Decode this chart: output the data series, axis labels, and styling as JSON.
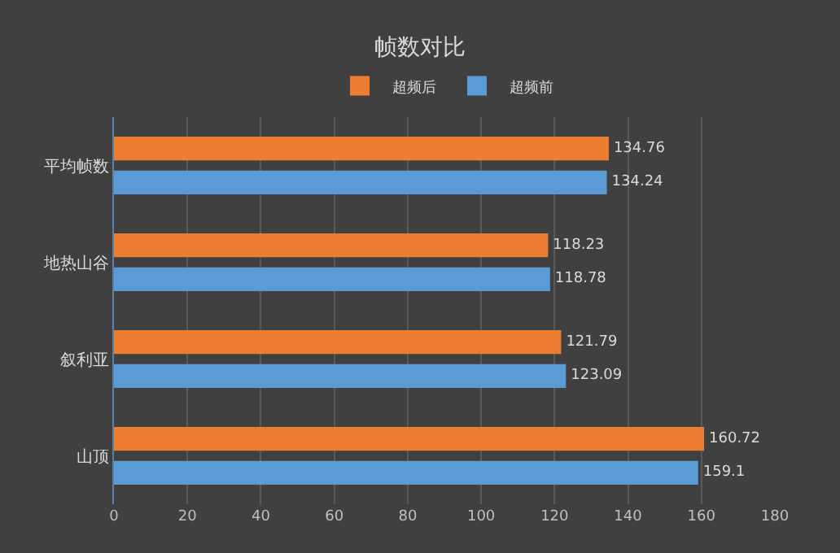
{
  "chart_data": {
    "type": "bar",
    "orientation": "horizontal",
    "title": "帧数对比",
    "categories": [
      "平均帧数",
      "地热山谷",
      "叙利亚",
      "山顶"
    ],
    "series": [
      {
        "name": "超频后",
        "color": "#ed7d31",
        "values": [
          134.76,
          118.23,
          121.79,
          160.72
        ]
      },
      {
        "name": "超频前",
        "color": "#5b9bd5",
        "values": [
          134.24,
          118.78,
          123.09,
          159.1
        ]
      }
    ],
    "xlim": [
      0,
      180
    ],
    "xticks": [
      0,
      20,
      40,
      60,
      80,
      100,
      120,
      140,
      160,
      180
    ],
    "grid": "x",
    "legend": "top",
    "data_labels": true
  }
}
